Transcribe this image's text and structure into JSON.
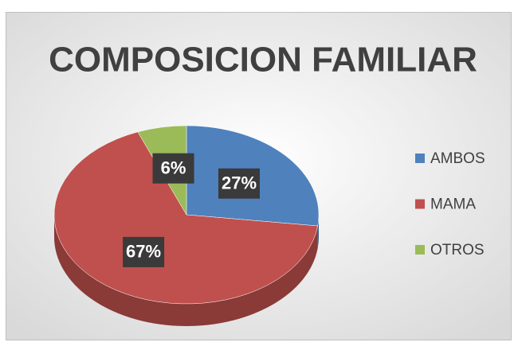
{
  "chart_data": {
    "type": "pie3d",
    "title": "COMPOSICION FAMILIAR",
    "categories": [
      "AMBOS",
      "MAMA",
      "OTROS"
    ],
    "values": [
      27,
      67,
      6
    ],
    "value_labels": [
      "27%",
      "67%",
      "6%"
    ],
    "colors": [
      "#4f81bd",
      "#c0504d",
      "#9bbb59"
    ],
    "legend": "right"
  }
}
